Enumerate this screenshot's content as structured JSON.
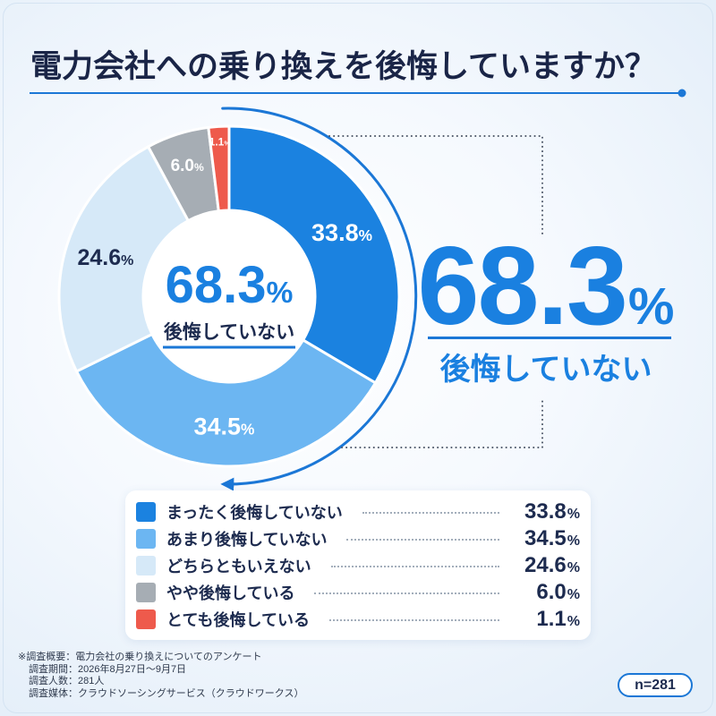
{
  "theme": {
    "accent": "#1b77d6",
    "highlight": "#1a80e0",
    "text": "#1d2b4f"
  },
  "chart_data": {
    "type": "pie",
    "donut": true,
    "title": "電力会社への乗り換えを後悔していますか？",
    "categories": [
      "まったく後悔していない",
      "あまり後悔していない",
      "どちらともいえない",
      "やや後悔している",
      "とても後悔している"
    ],
    "values": [
      33.8,
      34.5,
      24.6,
      6.0,
      1.1
    ],
    "data_labels": [
      "33.8",
      "34.5",
      "24.6",
      "6.0",
      "1.1"
    ],
    "unit": "%",
    "colors": [
      "#1b82e0",
      "#6cb6f2",
      "#d6e9f8",
      "#a6adb4",
      "#ee5a4c"
    ],
    "legend": "bottom"
  },
  "summary": {
    "value": "68.3",
    "unit": "%",
    "label": "後悔していない"
  },
  "footer": {
    "notes": [
      "※調査概要：電力会社の乗り換えについてのアンケート",
      "調査期間：2026年8月27日～9月7日",
      "調査人数：281人",
      "調査媒体：クラウドソーシングサービス（クラウドワークス）"
    ],
    "sample_size": "n=281"
  }
}
